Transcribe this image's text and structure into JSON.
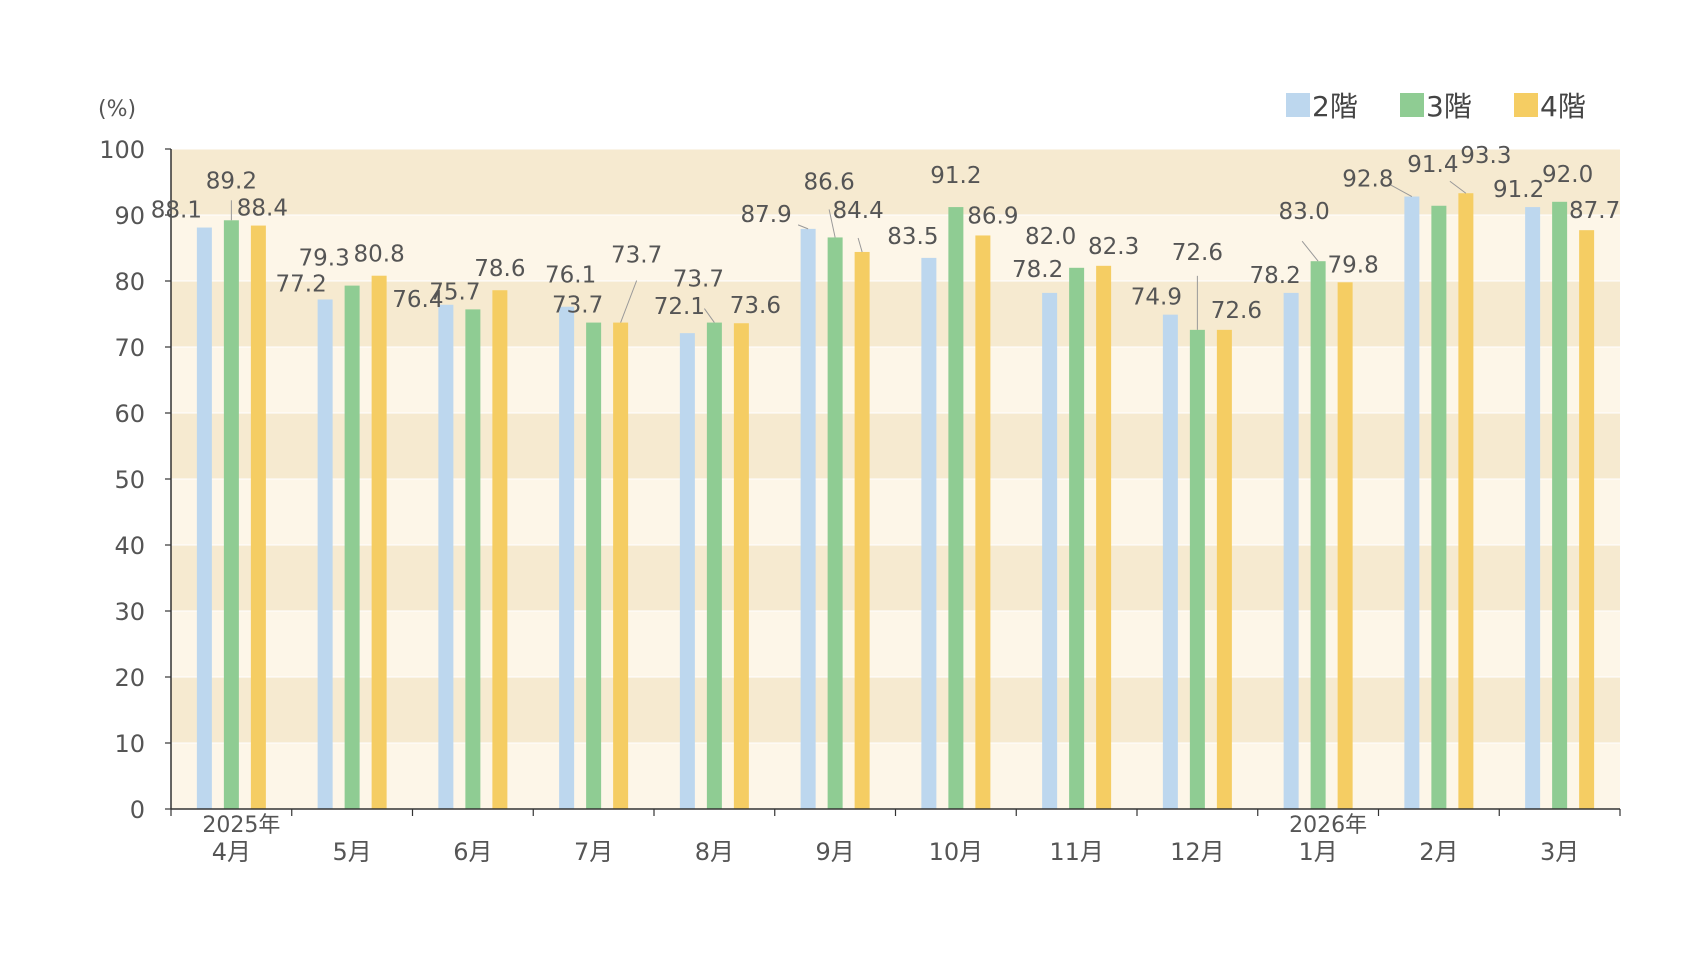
{
  "chart_data": {
    "type": "bar",
    "title": "",
    "xlabel": "",
    "ylabel": "(%)",
    "ylim": [
      0,
      100
    ],
    "yticks": [
      0,
      10,
      20,
      30,
      40,
      50,
      60,
      70,
      80,
      90,
      100
    ],
    "yticks_text": [
      "0",
      "10",
      "20",
      "30",
      "40",
      "50",
      "60",
      "70",
      "80",
      "90",
      "100"
    ],
    "categories": [
      "4月",
      "5月",
      "6月",
      "7月",
      "8月",
      "9月",
      "10月",
      "11月",
      "12月",
      "1月",
      "2月",
      "3月"
    ],
    "year_markers": [
      {
        "category_index": 0,
        "label": "2025年"
      },
      {
        "category_index": 9,
        "label": "2026年"
      }
    ],
    "legend_position": "top-right",
    "grid": false,
    "band_colors": [
      "#fdf6e8",
      "#f6ead0"
    ],
    "series": [
      {
        "name": "2階",
        "color": "#bdd7ee",
        "values": [
          88.1,
          77.2,
          76.4,
          76.1,
          72.1,
          87.9,
          83.5,
          78.2,
          74.9,
          78.2,
          92.8,
          91.2
        ],
        "labels": [
          "88.1",
          "77.2",
          "76.4",
          "76.1",
          "72.1",
          "87.9",
          "83.5",
          "78.2",
          "74.9",
          "78.2",
          "92.8",
          "91.2"
        ]
      },
      {
        "name": "3階",
        "color": "#8fcc93",
        "values": [
          89.2,
          79.3,
          75.7,
          73.7,
          73.7,
          86.6,
          91.2,
          82.0,
          72.6,
          83.0,
          91.4,
          92.0
        ],
        "labels": [
          "89.2",
          "79.3",
          "75.7",
          "73.7",
          "73.7",
          "86.6",
          "91.2",
          "82.0",
          "72.6",
          "83.0",
          "91.4",
          "92.0"
        ]
      },
      {
        "name": "4階",
        "color": "#f5cd63",
        "values": [
          88.4,
          80.8,
          78.6,
          73.7,
          73.6,
          84.4,
          86.9,
          82.3,
          72.6,
          79.8,
          93.3,
          87.7
        ],
        "labels": [
          "88.4",
          "80.8",
          "78.6",
          "73.7",
          "73.6",
          "84.4",
          "86.9",
          "82.3",
          "72.6",
          "79.8",
          "93.3",
          "87.7"
        ]
      }
    ]
  }
}
